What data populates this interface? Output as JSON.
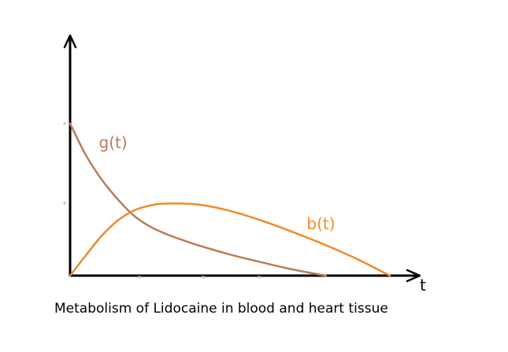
{
  "chart_data": {
    "type": "line",
    "title": "Metabolism of Lidocaine in blood and heart tissue",
    "xlabel": "t",
    "ylabel": "",
    "xlim": [
      0,
      10
    ],
    "ylim": [
      0,
      4
    ],
    "grid": false,
    "series": [
      {
        "name": "g(t)",
        "color": "#b87d5b",
        "x": [
          0,
          0.5,
          1,
          1.5,
          2,
          2.5,
          3,
          3.5,
          4,
          5,
          6,
          7,
          8
        ],
        "y": [
          3.1,
          2.45,
          1.95,
          1.55,
          1.22,
          1.0,
          0.85,
          0.73,
          0.62,
          0.43,
          0.27,
          0.12,
          0.0
        ]
      },
      {
        "name": "b(t)",
        "color": "#f08a2b",
        "x": [
          0,
          0.5,
          1,
          1.5,
          2,
          2.5,
          3,
          4,
          5,
          6,
          7,
          8,
          9,
          10
        ],
        "y": [
          0,
          0.42,
          0.82,
          1.13,
          1.33,
          1.43,
          1.47,
          1.45,
          1.32,
          1.12,
          0.88,
          0.62,
          0.33,
          0.0
        ]
      }
    ],
    "label_positions": {
      "g(t)": {
        "x": 0.9,
        "y": 2.6
      },
      "b(t)": {
        "x": 7.4,
        "y": 0.95
      }
    }
  }
}
